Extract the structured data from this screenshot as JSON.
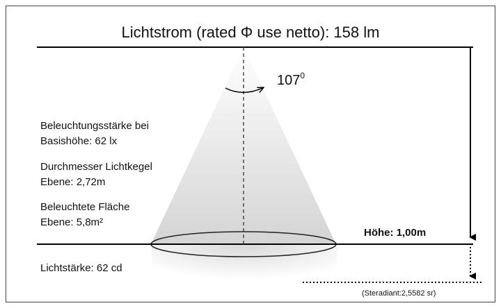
{
  "title": "Lichtstrom (rated Φ use netto): 158 lm",
  "angle": {
    "text": "107",
    "superscript": "0"
  },
  "left_labels": [
    [
      "Beleuchtungsstärke bei",
      "Basishöhe: 62 lx"
    ],
    [
      "Durchmesser Lichtkegel",
      "Ebene: 2,72m"
    ],
    [
      "Beleuchtete Fläche",
      "Ebene: 5,8m²"
    ]
  ],
  "height_label": "Höhe: 1,00m",
  "intensity_label": "Lichtstärke: 62 cd",
  "steradian_label": "(Steradiant:2,5582 sr)"
}
